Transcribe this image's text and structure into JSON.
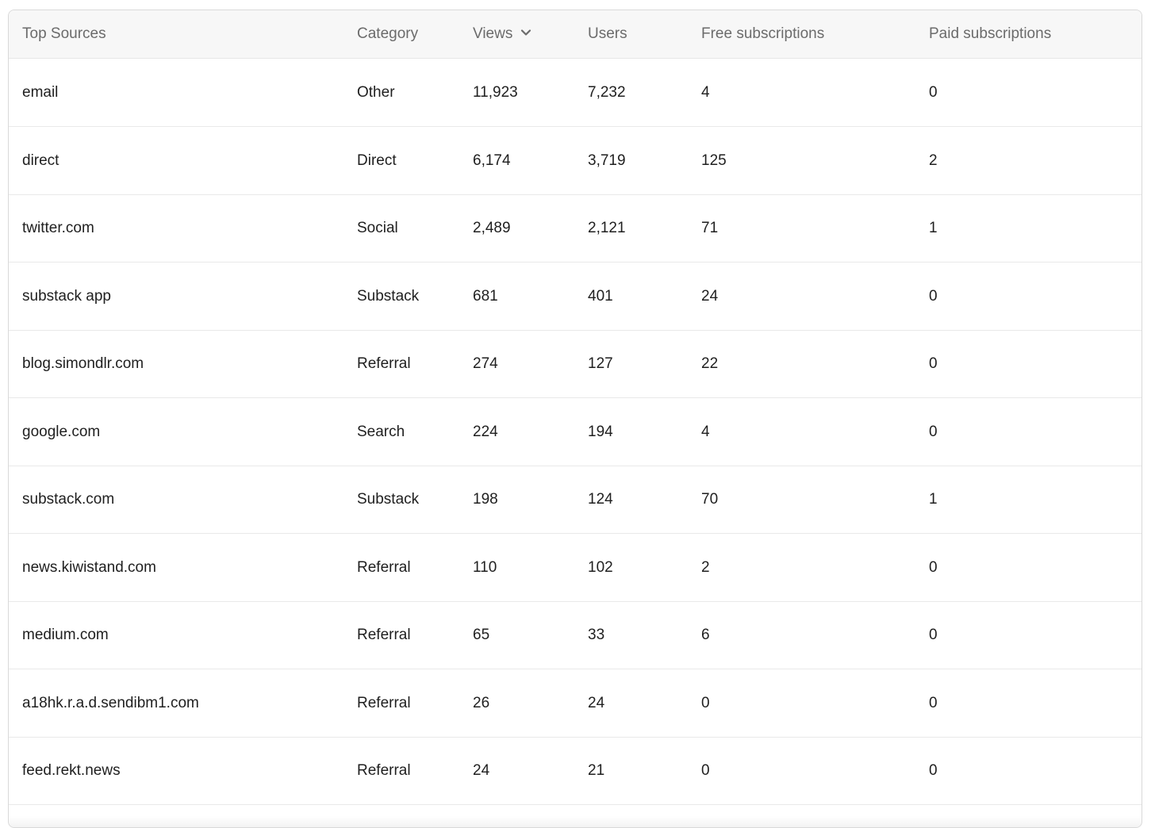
{
  "table": {
    "columns": {
      "source": "Top Sources",
      "category": "Category",
      "views": "Views",
      "users": "Users",
      "free": "Free subscriptions",
      "paid": "Paid subscriptions"
    },
    "sort": {
      "column": "views",
      "direction": "descending",
      "icon": "chevron-down-icon"
    },
    "rows": [
      {
        "source": "email",
        "category": "Other",
        "views": "11,923",
        "users": "7,232",
        "free": "4",
        "paid": "0"
      },
      {
        "source": "direct",
        "category": "Direct",
        "views": "6,174",
        "users": "3,719",
        "free": "125",
        "paid": "2"
      },
      {
        "source": "twitter.com",
        "category": "Social",
        "views": "2,489",
        "users": "2,121",
        "free": "71",
        "paid": "1"
      },
      {
        "source": "substack app",
        "category": "Substack",
        "views": "681",
        "users": "401",
        "free": "24",
        "paid": "0"
      },
      {
        "source": "blog.simondlr.com",
        "category": "Referral",
        "views": "274",
        "users": "127",
        "free": "22",
        "paid": "0"
      },
      {
        "source": "google.com",
        "category": "Search",
        "views": "224",
        "users": "194",
        "free": "4",
        "paid": "0"
      },
      {
        "source": "substack.com",
        "category": "Substack",
        "views": "198",
        "users": "124",
        "free": "70",
        "paid": "1"
      },
      {
        "source": "news.kiwistand.com",
        "category": "Referral",
        "views": "110",
        "users": "102",
        "free": "2",
        "paid": "0"
      },
      {
        "source": "medium.com",
        "category": "Referral",
        "views": "65",
        "users": "33",
        "free": "6",
        "paid": "0"
      },
      {
        "source": "a18hk.r.a.d.sendibm1.com",
        "category": "Referral",
        "views": "26",
        "users": "24",
        "free": "0",
        "paid": "0"
      },
      {
        "source": "feed.rekt.news",
        "category": "Referral",
        "views": "24",
        "users": "21",
        "free": "0",
        "paid": "0"
      }
    ]
  },
  "colors": {
    "header_bg": "#f7f7f7",
    "header_text": "#6b6b6b",
    "cell_text": "#1f1f1f",
    "divider": "#e9e9e9"
  }
}
